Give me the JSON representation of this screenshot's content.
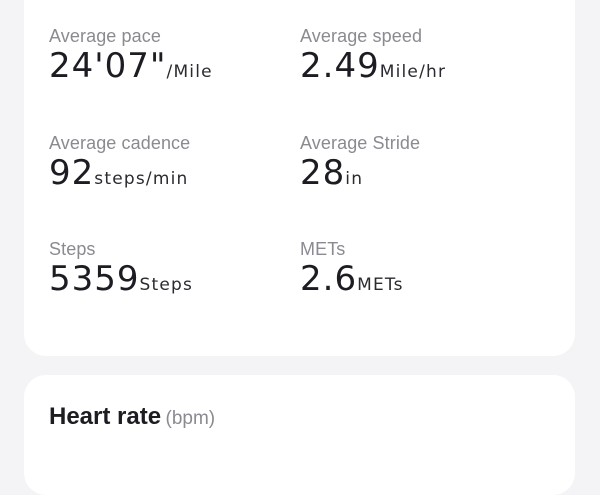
{
  "stats": [
    {
      "label": "Average pace",
      "value": "24'07\"",
      "unit": "/Mile"
    },
    {
      "label": "Average speed",
      "value": "2.49",
      "unit": "Mile/hr"
    },
    {
      "label": "Average cadence",
      "value": "92",
      "unit": "steps/min"
    },
    {
      "label": "Average Stride",
      "value": "28",
      "unit": "in"
    },
    {
      "label": "Steps",
      "value": "5359",
      "unit": "Steps"
    },
    {
      "label": "METs",
      "value": "2.6",
      "unit": "METs"
    }
  ],
  "heart_rate": {
    "title": "Heart rate",
    "unit": "(bpm)"
  }
}
